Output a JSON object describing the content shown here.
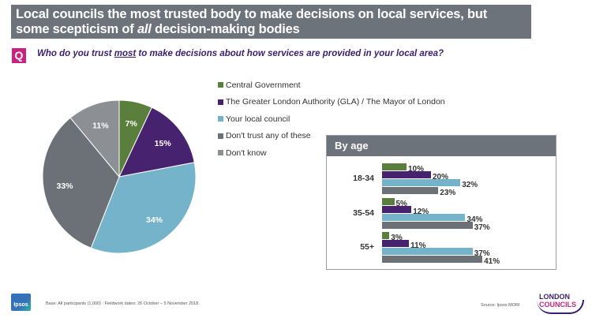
{
  "header": {
    "title_line1": "Local councils the most trusted body to make decisions on local services, but",
    "title_line2_pre": "some scepticism of ",
    "title_line2_em": "all",
    "title_line2_post": " decision-making bodies"
  },
  "question": {
    "badge": "Q",
    "text_pre": "Who do you trust ",
    "text_underlined": "most",
    "text_post": " to make decisions about how services are provided in your local area?"
  },
  "colors": {
    "central_government": "#5a7f3c",
    "gla": "#47226e",
    "local_council": "#74b3c9",
    "dont_trust": "#6b7177",
    "dont_know": "#8c8f93",
    "title_bar": "#6d737a",
    "accent": "#c8237f"
  },
  "chart_data": [
    {
      "type": "pie",
      "title": "Who do you trust most to make decisions about how services are provided in your local area?",
      "categories": [
        "Central Government",
        "The Greater London Authority (GLA) / The Mayor of London",
        "Your local council",
        "Don't trust any of these",
        "Don't know"
      ],
      "values": [
        7,
        15,
        34,
        33,
        11
      ],
      "labels": [
        "7%",
        "15%",
        "34%",
        "33%",
        "11%"
      ],
      "legend": "right"
    },
    {
      "type": "bar",
      "orientation": "horizontal",
      "title": "By age",
      "categories": [
        "18-34",
        "35-54",
        "55+"
      ],
      "series": [
        {
          "name": "Central Government",
          "values": [
            10,
            5,
            3
          ]
        },
        {
          "name": "The Greater London Authority (GLA) / The Mayor of London",
          "values": [
            20,
            12,
            11
          ]
        },
        {
          "name": "Your local council",
          "values": [
            32,
            34,
            37
          ]
        },
        {
          "name": "Don't trust any of these",
          "values": [
            23,
            37,
            41
          ]
        }
      ],
      "unit": "%"
    }
  ],
  "footer": {
    "base": "Base: All participants (1,000) : Fieldwork dates: 26 October – 5 November 2018.",
    "source": "Source: Ipsos MORI",
    "ipsos_logo": "Ipsos",
    "lc_logo_line1": "LONDON",
    "lc_logo_line2": "COUNCILS"
  }
}
